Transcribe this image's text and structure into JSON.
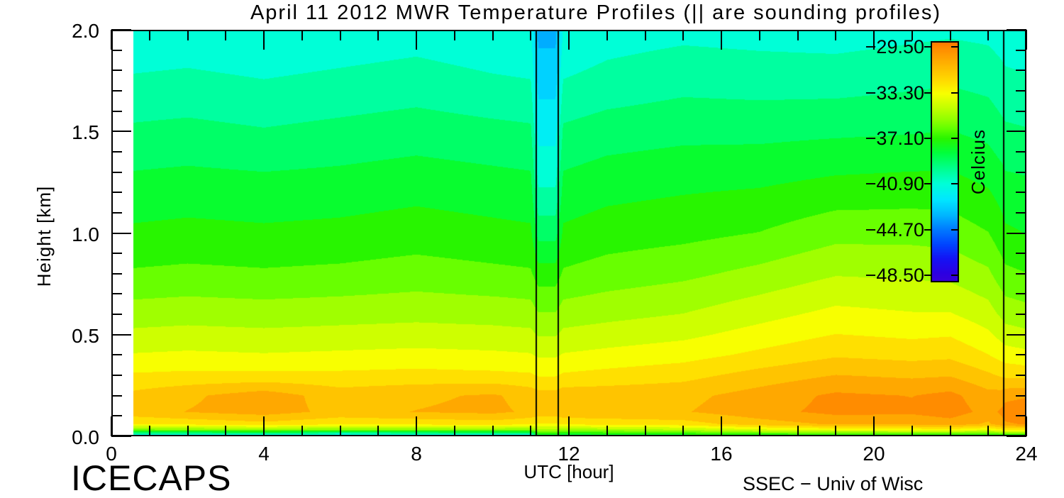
{
  "footer": {
    "left": "ICECAPS",
    "right": "SSEC − Univ of Wisc"
  },
  "chart_data": {
    "type": "heatmap",
    "title": "April 11 2012 MWR Temperature Profiles (|| are sounding profiles)",
    "xlabel": "UTC [hour]",
    "ylabel": "Height [km]",
    "x_axis": {
      "title": "UTC [hour]",
      "range": [
        0,
        24
      ],
      "tick_labels": [
        "0",
        "4",
        "8",
        "12",
        "16",
        "20",
        "24"
      ],
      "tick_values": [
        0,
        4,
        8,
        12,
        16,
        20,
        24
      ],
      "minor_tick_step": 1
    },
    "y_axis": {
      "title": "Height [km]",
      "range": [
        0,
        2
      ],
      "tick_labels": [
        "2.0",
        "1.5",
        "1.0",
        "0.5",
        "0.0"
      ],
      "tick_values": [
        2.0,
        1.5,
        1.0,
        0.5,
        0.0
      ],
      "minor_tick_step": 0.1
    },
    "colorbar": {
      "label": "Celcius",
      "tick_labels": [
        "−29.50",
        "−33.30",
        "−37.10",
        "−40.90",
        "−44.70",
        "−48.50"
      ],
      "tick_values": [
        -29.5,
        -33.3,
        -37.1,
        -40.9,
        -44.7,
        -48.5
      ],
      "top_value": -29.0,
      "bottom_value": -49.1
    },
    "axis_color": "#000000",
    "background_color": "#FFFFFF",
    "contour_step_c": 0.95,
    "contour_anchor_c": -29.5,
    "data_start_hour": 0.58,
    "sounding_profile_hours": [
      11.15,
      11.72,
      23.4
    ],
    "colormap_stops": [
      [
        -50.0,
        "#4600CD"
      ],
      [
        -48.5,
        "#2D00E1"
      ],
      [
        -47.2,
        "#1414F5"
      ],
      [
        -46.0,
        "#0046FF"
      ],
      [
        -44.7,
        "#007DFF"
      ],
      [
        -43.5,
        "#00B9FF"
      ],
      [
        -42.2,
        "#00E8FF"
      ],
      [
        -40.9,
        "#00FFD7"
      ],
      [
        -39.6,
        "#00FF8C"
      ],
      [
        -38.3,
        "#00FF3C"
      ],
      [
        -37.1,
        "#28F500"
      ],
      [
        -36.3,
        "#5FFF00"
      ],
      [
        -35.5,
        "#91FF00"
      ],
      [
        -34.5,
        "#C3FF00"
      ],
      [
        -33.3,
        "#F8FF00"
      ],
      [
        -32.3,
        "#FFDE00"
      ],
      [
        -31.0,
        "#FFB800"
      ],
      [
        -29.5,
        "#FF8C00"
      ],
      [
        -28.0,
        "#FF5500"
      ]
    ],
    "grid": {
      "hours": [
        0.6,
        2,
        4,
        6,
        8,
        10,
        11.0,
        11.2,
        11.65,
        11.85,
        13,
        15,
        17,
        19,
        21,
        22,
        23,
        23.35,
        23.45,
        24
      ],
      "heights_km": [
        2.0,
        1.75,
        1.5,
        1.25,
        1.0,
        0.8,
        0.6,
        0.5,
        0.4,
        0.3,
        0.2,
        0.12,
        0.06,
        0.03,
        0.0
      ],
      "temperature_c": [
        [
          -41.2,
          -41.1,
          -41.3,
          -41.1,
          -40.9,
          -41.2,
          -41.3,
          -43.6,
          -43.6,
          -41.3,
          -40.9,
          -40.7,
          -40.8,
          -40.9,
          -40.7,
          -40.6,
          -40.7,
          -40.9,
          -41.0,
          -41.1
        ],
        [
          -40.3,
          -40.2,
          -40.4,
          -40.2,
          -40.0,
          -40.3,
          -40.4,
          -42.7,
          -42.7,
          -40.4,
          -40.1,
          -39.8,
          -39.9,
          -39.9,
          -39.7,
          -39.6,
          -39.8,
          -40.1,
          -40.2,
          -40.3
        ],
        [
          -39.3,
          -39.2,
          -39.4,
          -39.2,
          -39.0,
          -39.2,
          -39.3,
          -41.7,
          -41.7,
          -39.3,
          -39.0,
          -38.8,
          -38.8,
          -38.7,
          -38.6,
          -38.5,
          -38.8,
          -39.2,
          -39.3,
          -39.4
        ],
        [
          -38.3,
          -38.2,
          -38.3,
          -38.2,
          -38.0,
          -38.2,
          -38.3,
          -40.6,
          -40.6,
          -38.3,
          -38.0,
          -37.8,
          -37.7,
          -37.4,
          -37.3,
          -37.3,
          -37.7,
          -38.1,
          -38.3,
          -38.4
        ],
        [
          -37.4,
          -37.3,
          -37.4,
          -37.3,
          -37.1,
          -37.3,
          -37.4,
          -38.9,
          -38.9,
          -37.4,
          -37.1,
          -36.9,
          -36.6,
          -36.0,
          -36.0,
          -36.1,
          -36.6,
          -37.2,
          -37.4,
          -37.6
        ],
        [
          -36.5,
          -36.4,
          -36.5,
          -36.4,
          -36.2,
          -36.4,
          -36.5,
          -37.1,
          -37.1,
          -36.5,
          -36.2,
          -35.9,
          -35.4,
          -34.8,
          -34.9,
          -35.0,
          -35.5,
          -36.2,
          -36.4,
          -36.6
        ],
        [
          -35.2,
          -35.1,
          -35.2,
          -35.1,
          -35.0,
          -35.1,
          -35.2,
          -35.6,
          -35.6,
          -35.2,
          -35.0,
          -34.7,
          -34.1,
          -33.5,
          -33.7,
          -33.7,
          -34.3,
          -34.9,
          -35.1,
          -35.3
        ],
        [
          -34.5,
          -34.4,
          -34.5,
          -34.4,
          -34.3,
          -34.4,
          -34.5,
          -34.8,
          -34.8,
          -34.5,
          -34.3,
          -34.0,
          -33.4,
          -32.8,
          -33.0,
          -32.9,
          -33.6,
          -34.1,
          -34.3,
          -34.5
        ],
        [
          -33.7,
          -33.6,
          -33.7,
          -33.6,
          -33.5,
          -33.6,
          -33.7,
          -33.9,
          -33.9,
          -33.7,
          -33.5,
          -33.2,
          -32.6,
          -32.0,
          -32.2,
          -32.1,
          -32.8,
          -33.2,
          -33.3,
          -33.5
        ],
        [
          -32.7,
          -32.6,
          -32.6,
          -32.6,
          -32.5,
          -32.6,
          -32.7,
          -32.9,
          -32.9,
          -32.7,
          -32.5,
          -32.2,
          -31.5,
          -30.9,
          -31.1,
          -31.0,
          -31.7,
          -32.0,
          -32.1,
          -32.2
        ],
        [
          -31.6,
          -31.1,
          -30.4,
          -31.4,
          -31.1,
          -30.8,
          -31.3,
          -31.5,
          -31.5,
          -31.3,
          -31.3,
          -31.2,
          -30.5,
          -29.8,
          -30.0,
          -29.7,
          -30.6,
          -30.5,
          -30.3,
          -30.1
        ],
        [
          -31.3,
          -30.9,
          -30.5,
          -31.2,
          -30.9,
          -30.7,
          -31.1,
          -31.3,
          -31.3,
          -31.1,
          -31.1,
          -31.0,
          -30.3,
          -29.7,
          -29.8,
          -29.5,
          -30.3,
          -29.8,
          -29.5,
          -29.2
        ],
        [
          -32.8,
          -32.6,
          -32.2,
          -32.7,
          -32.6,
          -32.4,
          -32.7,
          -32.9,
          -32.9,
          -32.7,
          -32.5,
          -32.3,
          -31.4,
          -30.8,
          -30.7,
          -30.4,
          -31.1,
          -30.3,
          -30.1,
          -29.9
        ],
        [
          -36.1,
          -35.9,
          -35.7,
          -36.0,
          -35.9,
          -35.8,
          -36.0,
          -35.1,
          -35.1,
          -35.5,
          -35.3,
          -34.9,
          -34.1,
          -33.7,
          -33.5,
          -33.3,
          -33.9,
          -33.1,
          -33.0,
          -32.9
        ],
        [
          -43.1,
          -43.4,
          -43.1,
          -43.5,
          -43.3,
          -43.1,
          -42.9,
          -38.6,
          -38.6,
          -39.4,
          -38.9,
          -38.7,
          -38.5,
          -38.4,
          -38.3,
          -38.4,
          -38.5,
          -38.3,
          -38.3,
          -38.2
        ]
      ]
    }
  }
}
